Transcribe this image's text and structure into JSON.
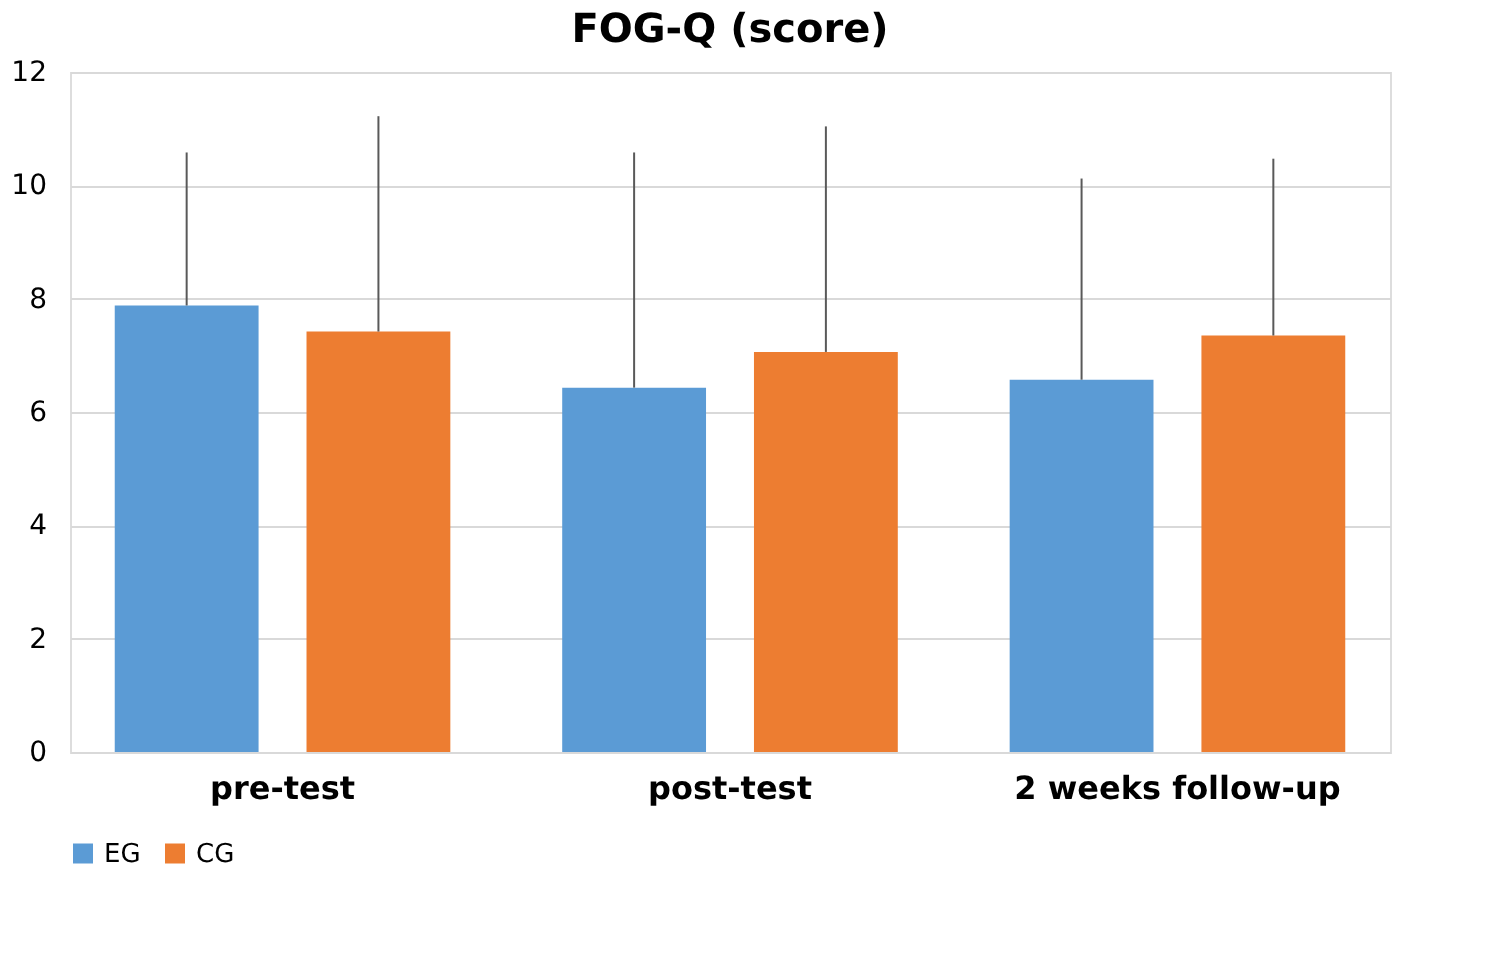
{
  "chart_data": {
    "type": "bar",
    "title": "FOG-Q (score)",
    "categories": [
      "pre-test",
      "post-test",
      "2 weeks follow-up"
    ],
    "series": [
      {
        "name": "EG",
        "color": "#5b9bd5",
        "values": [
          7.88,
          6.43,
          6.57
        ],
        "errors": [
          [
            7.88,
            10.58
          ],
          [
            6.43,
            10.58
          ],
          [
            6.57,
            10.12
          ]
        ]
      },
      {
        "name": "CG",
        "color": "#ed7d31",
        "values": [
          7.42,
          7.06,
          7.35
        ],
        "errors": [
          [
            7.42,
            11.22
          ],
          [
            7.06,
            11.04
          ],
          [
            7.35,
            10.47
          ]
        ]
      }
    ],
    "ylim": [
      0,
      12
    ],
    "yticks": [
      0,
      2,
      4,
      6,
      8,
      10,
      12
    ],
    "grid": "y",
    "legend": "bottom"
  }
}
